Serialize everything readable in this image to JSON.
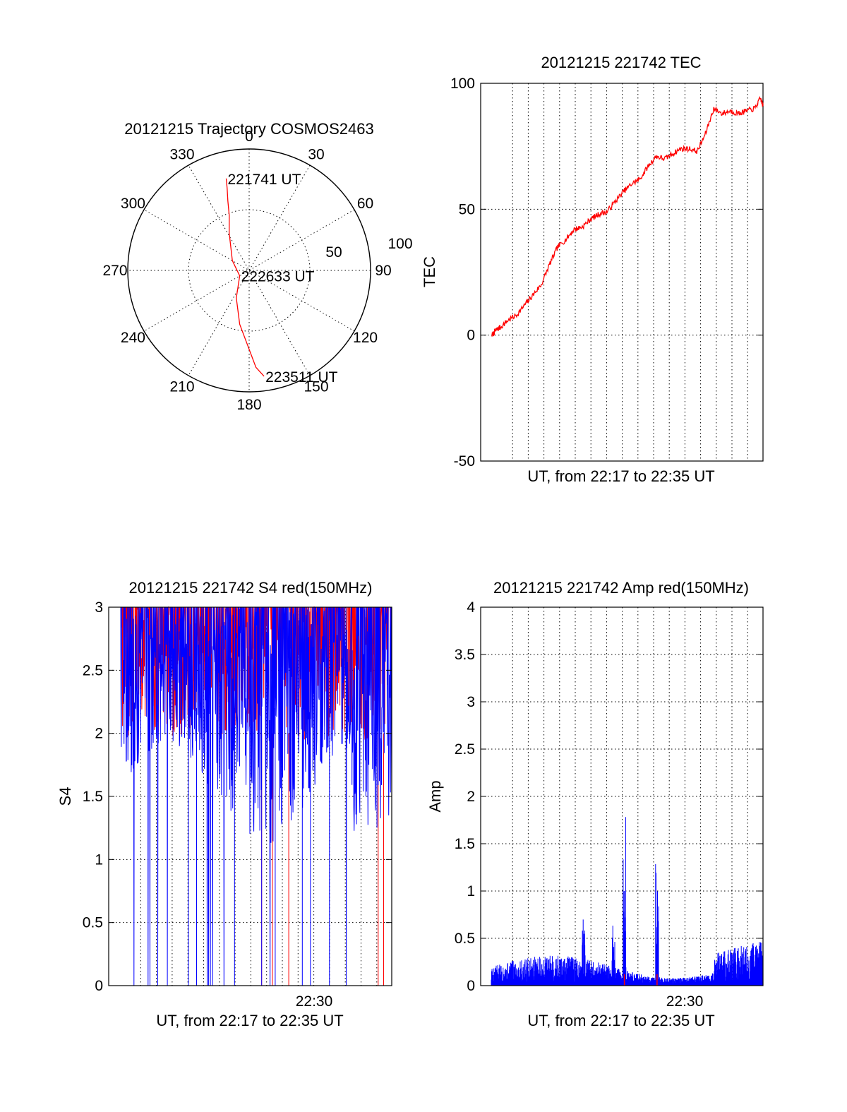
{
  "colors": {
    "red": "#ff0000",
    "blue": "#0000ff",
    "axis": "#000000"
  },
  "chart_data": [
    {
      "type": "polar",
      "title": "20121215 Trajectory COSMOS2463",
      "azimuth_labels": [
        "0",
        "30",
        "60",
        "90",
        "120",
        "150",
        "180",
        "210",
        "240",
        "270",
        "300",
        "330"
      ],
      "radius_labels": [
        "50",
        "100"
      ],
      "radius_max": 100,
      "point_labels": [
        {
          "text": "221741 UT",
          "azimuth": 346,
          "radius": 78
        },
        {
          "text": "222633 UT",
          "azimuth": 240,
          "radius": 9
        },
        {
          "text": "223511 UT",
          "azimuth": 172,
          "radius": 88
        }
      ],
      "trajectory": {
        "azimuth": [
          346,
          345,
          343,
          340,
          332,
          300,
          240,
          205,
          190,
          180,
          176,
          172
        ],
        "radius": [
          78,
          70,
          60,
          48,
          35,
          16,
          9,
          25,
          45,
          65,
          80,
          88
        ]
      }
    },
    {
      "type": "line",
      "title": "20121215 221742 TEC",
      "ylabel": "TEC",
      "xlabel": "UT, from 22:17 to 22:35 UT",
      "ylim": [
        -50,
        100
      ],
      "yticks": [
        "-50",
        "0",
        "50",
        "100"
      ],
      "series": [
        {
          "values": [
            [
              0,
              0
            ],
            [
              0.5,
              2
            ],
            [
              1,
              3
            ],
            [
              2,
              6
            ],
            [
              3,
              8
            ],
            [
              4,
              12
            ],
            [
              5,
              16
            ],
            [
              6,
              20
            ],
            [
              7,
              28
            ],
            [
              8,
              35
            ],
            [
              9,
              38
            ],
            [
              10,
              42
            ],
            [
              11,
              43
            ],
            [
              12,
              46
            ],
            [
              13,
              48
            ],
            [
              14,
              49
            ],
            [
              15,
              53
            ],
            [
              16,
              57
            ],
            [
              17,
              60
            ],
            [
              18,
              62
            ],
            [
              19,
              67
            ],
            [
              20,
              71
            ],
            [
              21,
              70
            ],
            [
              22,
              72
            ],
            [
              23,
              74
            ],
            [
              24,
              74
            ],
            [
              25,
              73
            ],
            [
              26,
              80
            ],
            [
              27,
              90
            ],
            [
              28,
              88
            ],
            [
              29,
              89
            ],
            [
              30,
              88
            ],
            [
              31,
              89
            ],
            [
              32,
              90
            ],
            [
              32.7,
              94
            ],
            [
              33,
              91
            ]
          ]
        }
      ]
    },
    {
      "type": "line",
      "title": "20121215 221742 S4 red(150MHz)",
      "ylabel": "S4",
      "xlabel": "UT, from 22:17 to 22:35 UT",
      "ylim": [
        0,
        3
      ],
      "yticks": [
        "0",
        "0.5",
        "1",
        "1.5",
        "2",
        "2.5",
        "3"
      ],
      "xticks": [
        "22:30"
      ],
      "series": [
        {
          "color": "red",
          "envelope_upper": 3.0,
          "envelope_lower": 1.9
        },
        {
          "color": "blue",
          "envelope_upper": 2.8,
          "envelope_lower": 1.2
        }
      ]
    },
    {
      "type": "line",
      "title": "20121215 221742 Amp red(150MHz)",
      "ylabel": "Amp",
      "xlabel": "UT, from 22:17 to 22:35 UT",
      "ylim": [
        0,
        4
      ],
      "yticks": [
        "0",
        "0.5",
        "1",
        "1.5",
        "2",
        "2.5",
        "3",
        "3.5",
        "4"
      ],
      "xticks": [
        "22:30"
      ],
      "series": [
        {
          "color": "blue",
          "peaks": [
            {
              "x": 0.49,
              "y": 2.0
            },
            {
              "x": 0.61,
              "y": 1.6
            },
            {
              "x": 0.34,
              "y": 0.93
            },
            {
              "x": 0.45,
              "y": 0.8
            }
          ],
          "baseline": 0.22
        }
      ]
    }
  ]
}
